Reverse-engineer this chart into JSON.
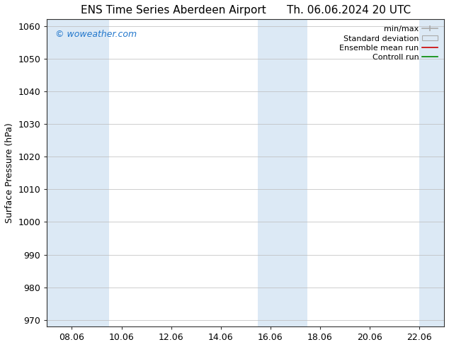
{
  "title_left": "ENS Time Series Aberdeen Airport",
  "title_right": "Th. 06.06.2024 20 UTC",
  "ylabel": "Surface Pressure (hPa)",
  "ylim": [
    968,
    1062
  ],
  "yticks": [
    970,
    980,
    990,
    1000,
    1010,
    1020,
    1030,
    1040,
    1050,
    1060
  ],
  "xlim": [
    0,
    16
  ],
  "xtick_labels": [
    "08.06",
    "10.06",
    "12.06",
    "14.06",
    "16.06",
    "18.06",
    "20.06",
    "22.06"
  ],
  "xtick_positions": [
    1,
    3,
    5,
    7,
    9,
    11,
    13,
    15
  ],
  "shaded_bands": [
    {
      "x_start": 0,
      "x_end": 2.5
    },
    {
      "x_start": 8.5,
      "x_end": 10.5
    },
    {
      "x_start": 15.0,
      "x_end": 16.0
    }
  ],
  "shaded_color": "#dce9f5",
  "background_color": "#ffffff",
  "legend_entries": [
    "min/max",
    "Standard deviation",
    "Ensemble mean run",
    "Controll run"
  ],
  "legend_colors_line": [
    "#aaaaaa",
    "#aaaaaa",
    "#cc0000",
    "#008800"
  ],
  "watermark": "© woweather.com",
  "watermark_color": "#2277cc",
  "title_fontsize": 11,
  "ylabel_fontsize": 9,
  "tick_fontsize": 9,
  "legend_fontsize": 8
}
